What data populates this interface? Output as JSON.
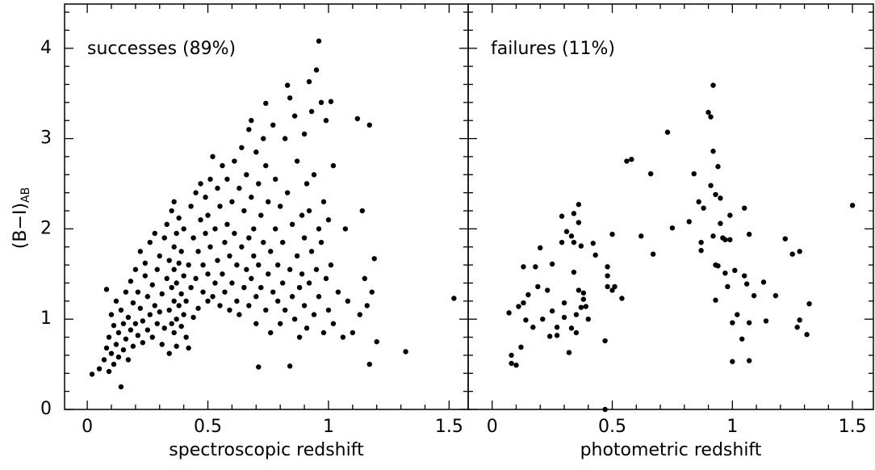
{
  "chart_data": [
    {
      "type": "scatter",
      "annotation": "successes (89%)",
      "xlabel": "spectroscopic redshift",
      "ylabel": "(B−I)",
      "ylabel_subscript": "AB",
      "color": "#000000",
      "xlim": [
        -0.094,
        1.579
      ],
      "ylim": [
        0,
        4.49
      ],
      "xticks": [
        0,
        0.5,
        1,
        1.5
      ],
      "yticks": [
        0,
        1,
        2,
        3,
        4
      ],
      "xticks_minor": [
        0.1,
        0.2,
        0.3,
        0.4,
        0.6,
        0.7,
        0.8,
        0.9,
        1.1,
        1.2,
        1.3,
        1.4
      ],
      "yticks_minor": [
        0.2,
        0.4,
        0.6,
        0.8,
        1.2,
        1.4,
        1.6,
        1.8,
        2.2,
        2.4,
        2.6,
        2.8,
        3.2,
        3.4,
        3.6,
        3.8,
        4.2,
        4.4
      ],
      "x": [
        0.02,
        0.05,
        0.07,
        0.08,
        0.08,
        0.09,
        0.09,
        0.1,
        0.1,
        0.11,
        0.11,
        0.12,
        0.12,
        0.13,
        0.13,
        0.14,
        0.14,
        0.15,
        0.15,
        0.16,
        0.16,
        0.17,
        0.17,
        0.18,
        0.18,
        0.19,
        0.19,
        0.2,
        0.2,
        0.21,
        0.21,
        0.22,
        0.22,
        0.23,
        0.23,
        0.24,
        0.24,
        0.25,
        0.25,
        0.26,
        0.26,
        0.27,
        0.27,
        0.28,
        0.28,
        0.29,
        0.29,
        0.3,
        0.3,
        0.31,
        0.31,
        0.32,
        0.32,
        0.33,
        0.33,
        0.34,
        0.34,
        0.34,
        0.35,
        0.35,
        0.35,
        0.36,
        0.36,
        0.36,
        0.36,
        0.36,
        0.37,
        0.37,
        0.37,
        0.37,
        0.38,
        0.38,
        0.38,
        0.39,
        0.39,
        0.39,
        0.4,
        0.4,
        0.4,
        0.41,
        0.41,
        0.42,
        0.42,
        0.43,
        0.43,
        0.44,
        0.44,
        0.45,
        0.45,
        0.46,
        0.46,
        0.47,
        0.47,
        0.48,
        0.48,
        0.49,
        0.49,
        0.5,
        0.5,
        0.5,
        0.51,
        0.51,
        0.52,
        0.52,
        0.53,
        0.53,
        0.54,
        0.54,
        0.55,
        0.55,
        0.56,
        0.56,
        0.57,
        0.57,
        0.58,
        0.58,
        0.59,
        0.59,
        0.6,
        0.6,
        0.61,
        0.61,
        0.62,
        0.62,
        0.63,
        0.63,
        0.64,
        0.64,
        0.65,
        0.65,
        0.66,
        0.66,
        0.67,
        0.67,
        0.67,
        0.68,
        0.68,
        0.68,
        0.69,
        0.69,
        0.7,
        0.7,
        0.7,
        0.71,
        0.71,
        0.71,
        0.72,
        0.72,
        0.73,
        0.73,
        0.74,
        0.74,
        0.74,
        0.75,
        0.75,
        0.76,
        0.76,
        0.77,
        0.77,
        0.78,
        0.78,
        0.79,
        0.79,
        0.8,
        0.8,
        0.81,
        0.81,
        0.82,
        0.82,
        0.83,
        0.83,
        0.84,
        0.84,
        0.84,
        0.85,
        0.85,
        0.86,
        0.86,
        0.87,
        0.87,
        0.88,
        0.88,
        0.89,
        0.89,
        0.9,
        0.9,
        0.9,
        0.91,
        0.91,
        0.92,
        0.92,
        0.92,
        0.93,
        0.93,
        0.94,
        0.94,
        0.95,
        0.95,
        0.96,
        0.96,
        0.96,
        0.97,
        0.97,
        0.98,
        0.98,
        0.99,
        0.99,
        1.0,
        1.0,
        1.01,
        1.01,
        1.02,
        1.02,
        1.04,
        1.06,
        1.07,
        1.08,
        1.1,
        1.12,
        1.13,
        1.14,
        1.15,
        1.16,
        1.17,
        1.17,
        1.18,
        1.19,
        1.2,
        1.32,
        1.52
      ],
      "values": [
        0.39,
        0.45,
        0.55,
        0.68,
        1.33,
        0.42,
        0.8,
        0.62,
        1.05,
        0.5,
        0.93,
        0.72,
        1.2,
        0.58,
        0.85,
        0.25,
        1.1,
        0.66,
        0.95,
        1.3,
        0.78,
        0.55,
        1.02,
        0.88,
        1.42,
        0.7,
        1.18,
        0.95,
        1.55,
        0.82,
        1.3,
        1.12,
        1.75,
        0.74,
        0.98,
        1.48,
        1.62,
        0.88,
        1.25,
        1.05,
        1.85,
        0.8,
        1.38,
        1.15,
        1.95,
        0.95,
        1.55,
        1.7,
        1.08,
        0.72,
        1.28,
        1.9,
        0.9,
        1.45,
        2.05,
        0.62,
        1.1,
        1.65,
        0.95,
        1.35,
        2.2,
        0.85,
        1.2,
        1.55,
        1.8,
        2.3,
        1.0,
        1.4,
        1.95,
        0.7,
        1.15,
        1.62,
        2.12,
        0.92,
        1.28,
        1.75,
        1.05,
        1.48,
        2.0,
        0.8,
        1.2,
        0.68,
        1.6,
        2.25,
        1.35,
        1.9,
        1.02,
        2.4,
        1.45,
        1.75,
        1.12,
        2.1,
        2.5,
        1.3,
        1.6,
        1.95,
        2.35,
        1.2,
        1.5,
        2.15,
        1.8,
        2.55,
        1.25,
        2.8,
        1.4,
        2.0,
        1.65,
        2.45,
        1.15,
        2.25,
        1.5,
        2.7,
        1.85,
        1.3,
        2.05,
        2.55,
        1.1,
        1.7,
        2.3,
        1.4,
        2.75,
        1.95,
        1.2,
        1.6,
        2.45,
        1.05,
        2.9,
        1.8,
        1.35,
        2.2,
        2.6,
        1.55,
        3.1,
        1.9,
        1.15,
        2.35,
        1.45,
        3.2,
        2.0,
        1.7,
        2.85,
        1.25,
        0.95,
        0.47,
        1.6,
        2.5,
        2.15,
        1.35,
        3.0,
        1.85,
        3.39,
        1.1,
        2.7,
        1.5,
        2.3,
        1.75,
        0.85,
        3.15,
        1.3,
        2.0,
        2.55,
        1.2,
        1.6,
        2.25,
        0.95,
        1.4,
        1.85,
        3.0,
        1.1,
        3.59,
        2.4,
        0.48,
        1.55,
        3.45,
        1.25,
        2.05,
        3.25,
        1.0,
        1.7,
        2.75,
        1.35,
        0.8,
        2.15,
        1.5,
        3.05,
        1.9,
        1.15,
        2.5,
        0.9,
        3.63,
        1.4,
        2.2,
        1.75,
        3.3,
        1.05,
        2.6,
        3.76,
        1.55,
        4.08,
        1.25,
        2.0,
        3.4,
        1.85,
        0.85,
        2.3,
        1.45,
        3.2,
        1.1,
        2.1,
        3.41,
        1.6,
        2.7,
        0.95,
        1.3,
        0.8,
        2.0,
        1.2,
        0.85,
        3.22,
        1.05,
        2.2,
        1.45,
        1.15,
        3.15,
        0.5,
        1.3,
        1.67,
        0.75,
        0.64,
        1.23
      ]
    },
    {
      "type": "scatter",
      "annotation": "failures (11%)",
      "xlabel": "photometric redshift",
      "color": "#000000",
      "xlim": [
        -0.1,
        1.587
      ],
      "ylim": [
        0,
        4.49
      ],
      "xticks": [
        0,
        0.5,
        1,
        1.5
      ],
      "yticks": [
        0,
        1,
        2,
        3,
        4
      ],
      "xticks_minor": [
        0.1,
        0.2,
        0.3,
        0.4,
        0.6,
        0.7,
        0.8,
        0.9,
        1.1,
        1.2,
        1.3,
        1.4
      ],
      "yticks_minor": [
        0.2,
        0.4,
        0.6,
        0.8,
        1.2,
        1.4,
        1.6,
        1.8,
        2.2,
        2.4,
        2.6,
        2.8,
        3.2,
        3.4,
        3.6,
        3.8,
        4.2,
        4.4
      ],
      "x": [
        0.07,
        0.08,
        0.08,
        0.1,
        0.11,
        0.13,
        0.13,
        0.12,
        0.14,
        0.15,
        0.17,
        0.18,
        0.19,
        0.2,
        0.21,
        0.23,
        0.24,
        0.25,
        0.25,
        0.27,
        0.27,
        0.29,
        0.29,
        0.3,
        0.3,
        0.31,
        0.32,
        0.33,
        0.33,
        0.34,
        0.34,
        0.34,
        0.35,
        0.35,
        0.36,
        0.36,
        0.36,
        0.37,
        0.37,
        0.38,
        0.38,
        0.39,
        0.4,
        0.42,
        0.43,
        0.47,
        0.47,
        0.48,
        0.48,
        0.48,
        0.5,
        0.5,
        0.51,
        0.54,
        0.56,
        0.58,
        0.62,
        0.66,
        0.67,
        0.73,
        0.75,
        0.82,
        0.84,
        0.86,
        0.87,
        0.87,
        0.88,
        0.9,
        0.91,
        0.91,
        0.92,
        0.92,
        0.92,
        0.93,
        0.93,
        0.93,
        0.94,
        0.94,
        0.95,
        0.95,
        0.96,
        0.97,
        0.97,
        0.98,
        0.99,
        0.99,
        1.0,
        1.0,
        1.01,
        1.02,
        1.04,
        1.05,
        1.05,
        1.06,
        1.07,
        1.07,
        1.07,
        1.09,
        1.13,
        1.14,
        1.18,
        1.22,
        1.25,
        1.28,
        1.27,
        1.28,
        1.31,
        1.32,
        1.5
      ],
      "values": [
        1.07,
        0.6,
        0.51,
        0.49,
        1.14,
        1.58,
        1.18,
        0.69,
        0.99,
        1.27,
        0.91,
        1.58,
        1.36,
        1.79,
        1.0,
        1.32,
        0.81,
        1.61,
        1.09,
        0.91,
        0.82,
        1.85,
        2.14,
        1.18,
        1.02,
        1.97,
        0.63,
        1.92,
        0.9,
        2.17,
        1.85,
        1.52,
        1.05,
        0.85,
        2.07,
        1.32,
        2.27,
        1.13,
        1.81,
        1.29,
        1.22,
        1.14,
        1.0,
        1.84,
        1.71,
        0.76,
        0.0,
        1.58,
        1.48,
        1.36,
        1.94,
        1.32,
        1.36,
        1.23,
        2.75,
        2.77,
        1.92,
        2.61,
        1.72,
        3.07,
        2.01,
        2.08,
        2.61,
        2.3,
        1.85,
        1.76,
        2.23,
        3.29,
        3.24,
        2.48,
        1.92,
        3.59,
        2.86,
        2.38,
        1.6,
        1.21,
        2.69,
        1.59,
        2.06,
        2.34,
        1.9,
        1.51,
        1.88,
        1.36,
        1.88,
        2.15,
        0.53,
        0.96,
        1.54,
        1.05,
        0.78,
        2.23,
        1.48,
        1.39,
        0.54,
        1.94,
        0.96,
        1.26,
        1.41,
        0.98,
        1.26,
        1.89,
        1.72,
        1.75,
        0.91,
        0.99,
        0.83,
        1.17,
        2.26
      ]
    }
  ]
}
